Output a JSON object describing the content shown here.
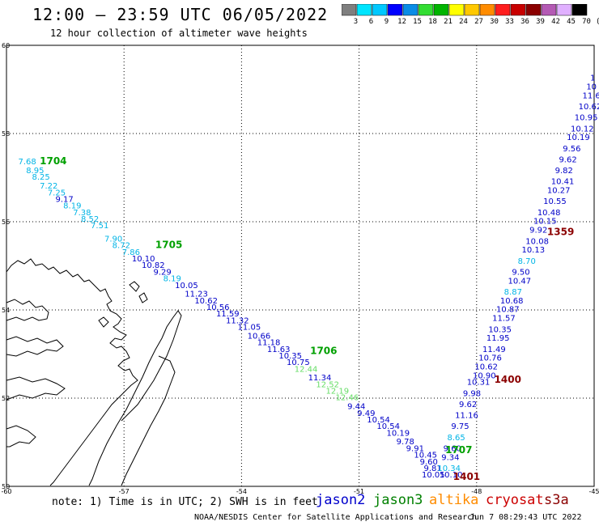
{
  "header": {
    "title": "12:00 – 23:59 UTC 06/05/2022",
    "subtitle": "12 hour collection of altimeter wave heights"
  },
  "scale": {
    "labels": [
      "3",
      "6",
      "9",
      "12",
      "15",
      "18",
      "21",
      "24",
      "27",
      "30",
      "33",
      "36",
      "39",
      "42",
      "45",
      "70",
      "(ft)"
    ],
    "colors": [
      "#7f7f7f",
      "#00e5ff",
      "#00c8ff",
      "#0000ff",
      "#0a8ce6",
      "#33dd33",
      "#00b400",
      "#ffff00",
      "#ffc800",
      "#ff8c00",
      "#ff1e1e",
      "#c80000",
      "#8b0000",
      "#b45ab4",
      "#e0b0ff",
      "#000000"
    ]
  },
  "axes": {
    "lon_labels": [
      "-60",
      "-57",
      "-54",
      "-51",
      "-48",
      "-45"
    ],
    "lat_labels": [
      "50",
      "52",
      "54",
      "56",
      "58",
      "60"
    ]
  },
  "footer": {
    "note": "note: 1) Time is in UTC; 2) SWH is in feet",
    "satellites": [
      {
        "name": "jason2",
        "color": "#0000cc"
      },
      {
        "name": "jason3",
        "color": "#008000"
      },
      {
        "name": "altika",
        "color": "#ff8c00"
      },
      {
        "name": "cryosat",
        "color": "#cc0000"
      },
      {
        "name": "s3a",
        "color": "#8b0000"
      }
    ],
    "credit": "NOAA/NESDIS Center for Satellite Applications and Research",
    "stamp": "Jun  7 08:29:43 UTC 2022"
  },
  "colors": {
    "cyan": "#00b4e6",
    "blue": "#0000c8",
    "green": "#00a000",
    "lightgreen": "#66dd66",
    "darkred": "#8b0000"
  },
  "map": {
    "track1": [
      {
        "v": "7.68",
        "c": "cyan",
        "lon": -59.7,
        "lat": 57.3
      },
      {
        "v": "8.95",
        "c": "cyan",
        "lon": -59.5,
        "lat": 57.1
      },
      {
        "v": "8.25",
        "c": "cyan",
        "lon": -59.35,
        "lat": 56.95
      },
      {
        "v": "7.22",
        "c": "cyan",
        "lon": -59.15,
        "lat": 56.75
      },
      {
        "v": "7.25",
        "c": "cyan",
        "lon": -58.95,
        "lat": 56.6
      },
      {
        "v": "9.17",
        "c": "blue",
        "lon": -58.75,
        "lat": 56.45
      },
      {
        "v": "8.19",
        "c": "cyan",
        "lon": -58.55,
        "lat": 56.3
      },
      {
        "v": "7.38",
        "c": "cyan",
        "lon": -58.3,
        "lat": 56.15
      },
      {
        "v": "8.52",
        "c": "cyan",
        "lon": -58.1,
        "lat": 56.0
      },
      {
        "v": "7.51",
        "c": "cyan",
        "lon": -57.85,
        "lat": 55.85
      },
      {
        "v": "7.90",
        "c": "cyan",
        "lon": -57.5,
        "lat": 55.55
      },
      {
        "v": "8.72",
        "c": "cyan",
        "lon": -57.3,
        "lat": 55.4
      },
      {
        "v": "7.86",
        "c": "cyan",
        "lon": -57.05,
        "lat": 55.25
      },
      {
        "v": "10.10",
        "c": "blue",
        "lon": -56.8,
        "lat": 55.1
      },
      {
        "v": "10.82",
        "c": "blue",
        "lon": -56.55,
        "lat": 54.95
      },
      {
        "v": "9.29",
        "c": "blue",
        "lon": -56.25,
        "lat": 54.8
      },
      {
        "v": "8.19",
        "c": "cyan",
        "lon": -56.0,
        "lat": 54.65
      },
      {
        "v": "10.05",
        "c": "blue",
        "lon": -55.7,
        "lat": 54.5
      },
      {
        "v": "11.23",
        "c": "blue",
        "lon": -55.45,
        "lat": 54.3
      },
      {
        "v": "10.62",
        "c": "blue",
        "lon": -55.2,
        "lat": 54.15
      },
      {
        "v": "10.56",
        "c": "blue",
        "lon": -54.9,
        "lat": 54.0
      },
      {
        "v": "11.59",
        "c": "blue",
        "lon": -54.65,
        "lat": 53.85
      },
      {
        "v": "11.32",
        "c": "blue",
        "lon": -54.4,
        "lat": 53.7
      },
      {
        "v": "11.05",
        "c": "blue",
        "lon": -54.1,
        "lat": 53.55
      },
      {
        "v": "10.66",
        "c": "blue",
        "lon": -53.85,
        "lat": 53.35
      },
      {
        "v": "11.18",
        "c": "blue",
        "lon": -53.6,
        "lat": 53.2
      },
      {
        "v": "11.63",
        "c": "blue",
        "lon": -53.35,
        "lat": 53.05
      },
      {
        "v": "10.35",
        "c": "blue",
        "lon": -53.05,
        "lat": 52.9
      },
      {
        "v": "10.75",
        "c": "blue",
        "lon": -52.85,
        "lat": 52.75
      },
      {
        "v": "12.44",
        "c": "lightgreen",
        "lon": -52.65,
        "lat": 52.6
      },
      {
        "v": "11.34",
        "c": "blue",
        "lon": -52.3,
        "lat": 52.4
      },
      {
        "v": "12.52",
        "c": "lightgreen",
        "lon": -52.1,
        "lat": 52.25
      },
      {
        "v": "12.19",
        "c": "lightgreen",
        "lon": -51.85,
        "lat": 52.1
      },
      {
        "v": "12.46",
        "c": "lightgreen",
        "lon": -51.6,
        "lat": 51.95
      },
      {
        "v": "9.44",
        "c": "blue",
        "lon": -51.3,
        "lat": 51.75
      },
      {
        "v": "9.49",
        "c": "blue",
        "lon": -51.05,
        "lat": 51.6
      },
      {
        "v": "10.54",
        "c": "blue",
        "lon": -50.8,
        "lat": 51.45
      },
      {
        "v": "10.54",
        "c": "blue",
        "lon": -50.55,
        "lat": 51.3
      },
      {
        "v": "10.19",
        "c": "blue",
        "lon": -50.3,
        "lat": 51.15
      },
      {
        "v": "9.78",
        "c": "blue",
        "lon": -50.05,
        "lat": 50.95
      },
      {
        "v": "9.91",
        "c": "blue",
        "lon": -49.8,
        "lat": 50.8
      },
      {
        "v": "10.45",
        "c": "blue",
        "lon": -49.6,
        "lat": 50.65
      },
      {
        "v": "9.60",
        "c": "blue",
        "lon": -49.45,
        "lat": 50.5
      },
      {
        "v": "9.81",
        "c": "blue",
        "lon": -49.35,
        "lat": 50.35
      },
      {
        "v": "10.05",
        "c": "blue",
        "lon": -49.4,
        "lat": 50.2
      }
    ],
    "track2": [
      {
        "v": "10.10",
        "c": "blue",
        "lon": -48.95,
        "lat": 50.2
      },
      {
        "v": "10.34",
        "c": "cyan",
        "lon": -49.0,
        "lat": 50.35
      },
      {
        "v": "9.34",
        "c": "blue",
        "lon": -48.9,
        "lat": 50.6
      },
      {
        "v": "9.60",
        "c": "blue",
        "lon": -48.85,
        "lat": 50.8
      },
      {
        "v": "8.65",
        "c": "cyan",
        "lon": -48.75,
        "lat": 51.05
      },
      {
        "v": "9.75",
        "c": "blue",
        "lon": -48.65,
        "lat": 51.3
      },
      {
        "v": "11.16",
        "c": "blue",
        "lon": -48.55,
        "lat": 51.55
      },
      {
        "v": "9.62",
        "c": "blue",
        "lon": -48.45,
        "lat": 51.8
      },
      {
        "v": "9.98",
        "c": "blue",
        "lon": -48.35,
        "lat": 52.05
      },
      {
        "v": "10.31",
        "c": "blue",
        "lon": -48.25,
        "lat": 52.3
      },
      {
        "v": "10.90",
        "c": "blue",
        "lon": -48.1,
        "lat": 52.45
      },
      {
        "v": "10.62",
        "c": "blue",
        "lon": -48.05,
        "lat": 52.65
      },
      {
        "v": "10.76",
        "c": "blue",
        "lon": -47.95,
        "lat": 52.85
      },
      {
        "v": "11.49",
        "c": "blue",
        "lon": -47.85,
        "lat": 53.05
      },
      {
        "v": "11.95",
        "c": "blue",
        "lon": -47.75,
        "lat": 53.3
      },
      {
        "v": "10.35",
        "c": "blue",
        "lon": -47.7,
        "lat": 53.5
      },
      {
        "v": "11.57",
        "c": "blue",
        "lon": -47.6,
        "lat": 53.75
      },
      {
        "v": "10.87",
        "c": "blue",
        "lon": -47.5,
        "lat": 53.95
      },
      {
        "v": "10.68",
        "c": "blue",
        "lon": -47.4,
        "lat": 54.15
      },
      {
        "v": "8.87",
        "c": "cyan",
        "lon": -47.3,
        "lat": 54.35
      },
      {
        "v": "10.47",
        "c": "blue",
        "lon": -47.2,
        "lat": 54.6
      },
      {
        "v": "9.50",
        "c": "blue",
        "lon": -47.1,
        "lat": 54.8
      },
      {
        "v": "8.70",
        "c": "cyan",
        "lon": -46.95,
        "lat": 55.05
      },
      {
        "v": "10.13",
        "c": "blue",
        "lon": -46.85,
        "lat": 55.3
      },
      {
        "v": "10.08",
        "c": "blue",
        "lon": -46.75,
        "lat": 55.5
      },
      {
        "v": "9.92",
        "c": "blue",
        "lon": -46.65,
        "lat": 55.75
      },
      {
        "v": "10.15",
        "c": "blue",
        "lon": -46.55,
        "lat": 55.95
      },
      {
        "v": "10.48",
        "c": "blue",
        "lon": -46.45,
        "lat": 56.15
      },
      {
        "v": "10.55",
        "c": "blue",
        "lon": -46.3,
        "lat": 56.4
      },
      {
        "v": "10.27",
        "c": "blue",
        "lon": -46.2,
        "lat": 56.65
      },
      {
        "v": "10.41",
        "c": "blue",
        "lon": -46.1,
        "lat": 56.85
      },
      {
        "v": "9.82",
        "c": "blue",
        "lon": -46.0,
        "lat": 57.1
      },
      {
        "v": "9.62",
        "c": "blue",
        "lon": -45.9,
        "lat": 57.35
      },
      {
        "v": "9.56",
        "c": "blue",
        "lon": -45.8,
        "lat": 57.6
      },
      {
        "v": "10.19",
        "c": "blue",
        "lon": -45.7,
        "lat": 57.85
      },
      {
        "v": "10.12",
        "c": "blue",
        "lon": -45.6,
        "lat": 58.05
      },
      {
        "v": "10.95",
        "c": "blue",
        "lon": -45.5,
        "lat": 58.3
      },
      {
        "v": "10.62",
        "c": "blue",
        "lon": -45.4,
        "lat": 58.55
      },
      {
        "v": "11.6",
        "c": "blue",
        "lon": -45.3,
        "lat": 58.8
      },
      {
        "v": "10",
        "c": "blue",
        "lon": -45.2,
        "lat": 59.0
      },
      {
        "v": "1",
        "c": "blue",
        "lon": -45.1,
        "lat": 59.2
      }
    ],
    "times": [
      {
        "v": "1704",
        "c": "green",
        "lon": -59.15,
        "lat": 57.3
      },
      {
        "v": "1705",
        "c": "green",
        "lon": -56.2,
        "lat": 55.4
      },
      {
        "v": "1706",
        "c": "green",
        "lon": -52.25,
        "lat": 53.0
      },
      {
        "v": "1707",
        "c": "green",
        "lon": -48.8,
        "lat": 50.75
      },
      {
        "v": "1401",
        "c": "darkred",
        "lon": -48.6,
        "lat": 50.15
      },
      {
        "v": "1400",
        "c": "darkred",
        "lon": -47.55,
        "lat": 52.35
      },
      {
        "v": "1359",
        "c": "darkred",
        "lon": -46.2,
        "lat": 55.7
      }
    ]
  }
}
